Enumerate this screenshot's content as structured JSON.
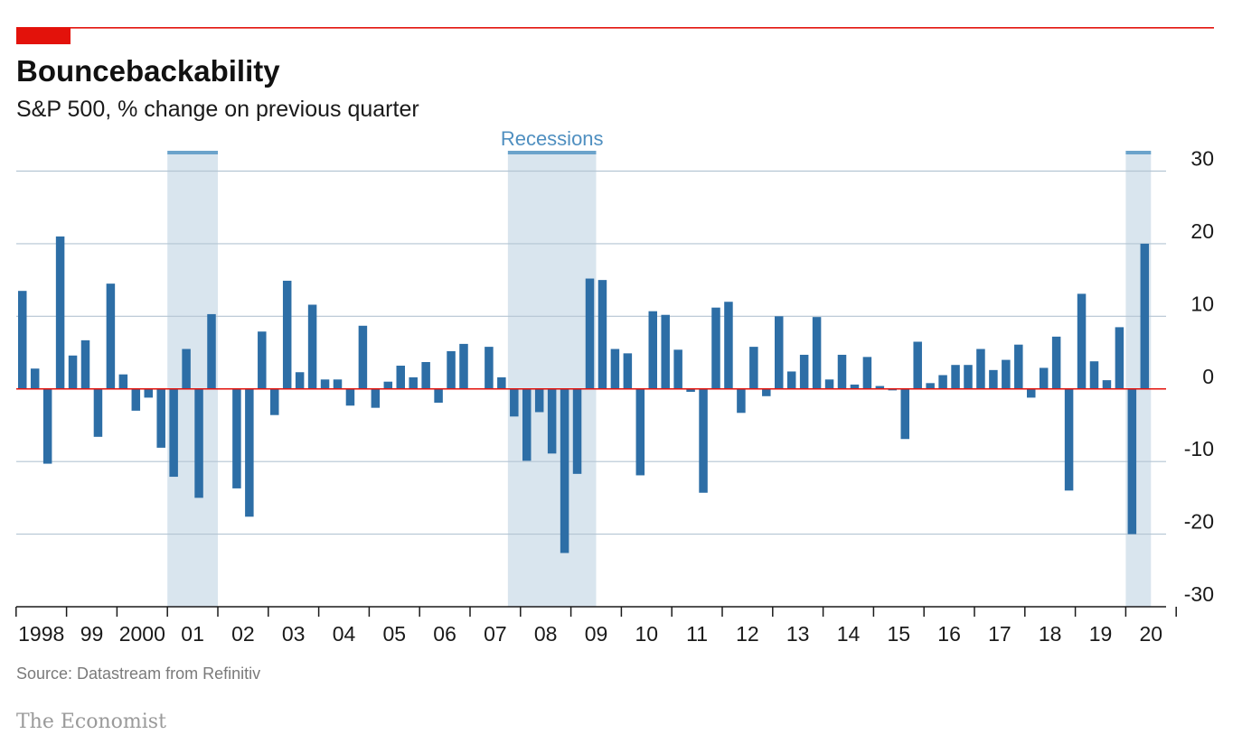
{
  "header": {
    "title": "Bouncebackability",
    "subtitle": "S&P 500, % change on previous quarter"
  },
  "footer": {
    "source": "Source: Datastream from Refinitiv",
    "brand": "The Economist"
  },
  "colors": {
    "accent": "#e3120b",
    "bar": "#2d6ea6",
    "recession": "#d9e5ee",
    "recession_bar": "#6ba3cb",
    "grid": "#b4c5d3",
    "zero_line": "#e3120b"
  },
  "chart_data": {
    "type": "bar",
    "title": "Bouncebackability",
    "subtitle": "S&P 500, % change on previous quarter",
    "ylim": [
      -30,
      30
    ],
    "yticks": [
      30,
      20,
      10,
      0,
      -10,
      -20,
      -30
    ],
    "ytick_labels": [
      "30",
      "20",
      "10",
      "0",
      "-10",
      "-20",
      "-30"
    ],
    "x_tick_labels": [
      "1998",
      "99",
      "2000",
      "01",
      "02",
      "03",
      "04",
      "05",
      "06",
      "07",
      "08",
      "09",
      "10",
      "11",
      "12",
      "13",
      "14",
      "15",
      "16",
      "17",
      "18",
      "19",
      "20"
    ],
    "grid": true,
    "recession_label": "Recessions",
    "recessions": [
      {
        "from_quarter": "2001-Q1",
        "to_quarter": "2001-Q4"
      },
      {
        "from_quarter": "2007-Q4",
        "to_quarter": "2009-Q2"
      },
      {
        "from_quarter": "2020-Q1",
        "to_quarter": "2020-Q2"
      }
    ],
    "categories": [
      "1998-Q1",
      "1998-Q2",
      "1998-Q3",
      "1998-Q4",
      "1999-Q1",
      "1999-Q2",
      "1999-Q3",
      "1999-Q4",
      "2000-Q1",
      "2000-Q2",
      "2000-Q3",
      "2000-Q4",
      "2001-Q1",
      "2001-Q2",
      "2001-Q3",
      "2001-Q4",
      "2002-Q1",
      "2002-Q2",
      "2002-Q3",
      "2002-Q4",
      "2003-Q1",
      "2003-Q2",
      "2003-Q3",
      "2003-Q4",
      "2004-Q1",
      "2004-Q2",
      "2004-Q3",
      "2004-Q4",
      "2005-Q1",
      "2005-Q2",
      "2005-Q3",
      "2005-Q4",
      "2006-Q1",
      "2006-Q2",
      "2006-Q3",
      "2006-Q4",
      "2007-Q1",
      "2007-Q2",
      "2007-Q3",
      "2007-Q4",
      "2008-Q1",
      "2008-Q2",
      "2008-Q3",
      "2008-Q4",
      "2009-Q1",
      "2009-Q2",
      "2009-Q3",
      "2009-Q4",
      "2010-Q1",
      "2010-Q2",
      "2010-Q3",
      "2010-Q4",
      "2011-Q1",
      "2011-Q2",
      "2011-Q3",
      "2011-Q4",
      "2012-Q1",
      "2012-Q2",
      "2012-Q3",
      "2012-Q4",
      "2013-Q1",
      "2013-Q2",
      "2013-Q3",
      "2013-Q4",
      "2014-Q1",
      "2014-Q2",
      "2014-Q3",
      "2014-Q4",
      "2015-Q1",
      "2015-Q2",
      "2015-Q3",
      "2015-Q4",
      "2016-Q1",
      "2016-Q2",
      "2016-Q3",
      "2016-Q4",
      "2017-Q1",
      "2017-Q2",
      "2017-Q3",
      "2017-Q4",
      "2018-Q1",
      "2018-Q2",
      "2018-Q3",
      "2018-Q4",
      "2019-Q1",
      "2019-Q2",
      "2019-Q3",
      "2019-Q4",
      "2020-Q1",
      "2020-Q2"
    ],
    "values": [
      13.5,
      2.8,
      -10.3,
      21.0,
      4.6,
      6.7,
      -6.6,
      14.5,
      2.0,
      -3.0,
      -1.2,
      -8.1,
      -12.1,
      5.5,
      -15.0,
      10.3,
      0.0,
      -13.7,
      -17.6,
      7.9,
      -3.6,
      14.9,
      2.3,
      11.6,
      1.3,
      1.3,
      -2.3,
      8.7,
      -2.6,
      1.0,
      3.2,
      1.6,
      3.7,
      -1.9,
      5.2,
      6.2,
      0.0,
      5.8,
      1.6,
      -3.8,
      -9.9,
      -3.2,
      -8.9,
      -22.6,
      -11.7,
      15.2,
      15.0,
      5.5,
      4.9,
      -11.9,
      10.7,
      10.2,
      5.4,
      -0.4,
      -14.3,
      11.2,
      12.0,
      -3.3,
      5.8,
      -1.0,
      10.0,
      2.4,
      4.7,
      9.9,
      1.3,
      4.7,
      0.6,
      4.4,
      0.4,
      -0.2,
      -6.9,
      6.5,
      0.8,
      1.9,
      3.3,
      3.3,
      5.5,
      2.6,
      4.0,
      6.1,
      -1.2,
      2.9,
      7.2,
      -14.0,
      13.1,
      3.8,
      1.2,
      8.5,
      -20.0,
      20.0
    ]
  }
}
